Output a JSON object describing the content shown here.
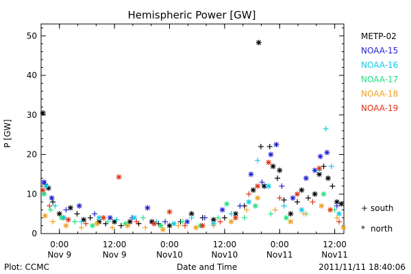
{
  "chart_data": {
    "type": "scatter",
    "title": "Hemispheric Power [GW]",
    "xlabel": "Date and Time",
    "ylabel": "P [GW]",
    "ylim": [
      0,
      53
    ],
    "yticks": [
      0,
      10,
      20,
      30,
      40,
      50
    ],
    "xlim": [
      -0.0833,
      1.2917
    ],
    "xticks": [
      {
        "x": 0.0,
        "line1": "0:00",
        "line2": "Nov 9"
      },
      {
        "x": 0.25,
        "line1": "12:00",
        "line2": "Nov 9"
      },
      {
        "x": 0.5,
        "line1": "0:00",
        "line2": "Nov10"
      },
      {
        "x": 0.75,
        "line1": "12:00",
        "line2": "Nov10"
      },
      {
        "x": 1.0,
        "line1": "0:00",
        "line2": "Nov11"
      },
      {
        "x": 1.25,
        "line1": "12:00",
        "line2": "Nov11"
      }
    ],
    "x_unit_note": "",
    "legend": [
      {
        "name": "METP-02",
        "color": "#000000"
      },
      {
        "name": "NOAA-15",
        "color": "#1f1fd0"
      },
      {
        "name": "NOAA-16",
        "color": "#10c8e8"
      },
      {
        "name": "NOAA-17",
        "color": "#20e080"
      },
      {
        "name": "NOAA-18",
        "color": "#f0a020"
      },
      {
        "name": "NOAA-19",
        "color": "#e03010"
      }
    ],
    "marker_legend": [
      {
        "symbol": "+",
        "label": "south"
      },
      {
        "symbol": "*",
        "label": "north"
      }
    ],
    "series": [
      {
        "name": "METP-02",
        "color": "#000000",
        "points": [
          [
            -0.075,
            30.5,
            "*"
          ],
          [
            -0.065,
            12.5,
            "+"
          ],
          [
            -0.05,
            11.5,
            "*"
          ],
          [
            -0.03,
            8,
            "+"
          ],
          [
            0.0,
            5,
            "*"
          ],
          [
            0.02,
            4,
            "+"
          ],
          [
            0.05,
            6.5,
            "*"
          ],
          [
            0.08,
            5,
            "+"
          ],
          [
            0.11,
            3.5,
            "*"
          ],
          [
            0.14,
            4,
            "+"
          ],
          [
            0.18,
            3,
            "*"
          ],
          [
            0.21,
            2.5,
            "+"
          ],
          [
            0.25,
            3,
            "*"
          ],
          [
            0.28,
            2,
            "+"
          ],
          [
            0.32,
            3,
            "*"
          ],
          [
            0.36,
            2.5,
            "+"
          ],
          [
            0.42,
            3,
            "*"
          ],
          [
            0.45,
            2.5,
            "+"
          ],
          [
            0.5,
            2,
            "*"
          ],
          [
            0.55,
            3,
            "+"
          ],
          [
            0.6,
            5,
            "*"
          ],
          [
            0.65,
            4,
            "+"
          ],
          [
            0.7,
            3.5,
            "*"
          ],
          [
            0.75,
            4,
            "+"
          ],
          [
            0.8,
            5,
            "*"
          ],
          [
            0.84,
            7,
            "+"
          ],
          [
            0.88,
            11,
            "*"
          ],
          [
            0.905,
            48.3,
            "*"
          ],
          [
            0.915,
            22,
            "+"
          ],
          [
            0.93,
            12,
            "*"
          ],
          [
            0.955,
            22,
            "+"
          ],
          [
            0.97,
            17,
            "*"
          ],
          [
            0.99,
            14,
            "+"
          ],
          [
            1.0,
            16,
            "*"
          ],
          [
            1.02,
            8.5,
            "+"
          ],
          [
            1.05,
            5,
            "*"
          ],
          [
            1.08,
            8,
            "+"
          ],
          [
            1.1,
            11,
            "*"
          ],
          [
            1.13,
            9,
            "+"
          ],
          [
            1.16,
            10,
            "*"
          ],
          [
            1.18,
            15,
            "*"
          ],
          [
            1.2,
            17,
            "+"
          ],
          [
            1.22,
            14,
            "*"
          ],
          [
            1.24,
            12,
            "+"
          ],
          [
            1.26,
            8,
            "*"
          ],
          [
            1.28,
            7.5,
            "*"
          ]
        ]
      },
      {
        "name": "NOAA-15",
        "color": "#1f1fd0",
        "points": [
          [
            -0.07,
            13,
            "*"
          ],
          [
            -0.035,
            9,
            "*"
          ],
          [
            0.03,
            6,
            "+"
          ],
          [
            0.09,
            7,
            "*"
          ],
          [
            0.16,
            5,
            "+"
          ],
          [
            0.23,
            4,
            "*"
          ],
          [
            0.33,
            4,
            "+"
          ],
          [
            0.4,
            6.5,
            "*"
          ],
          [
            0.48,
            3,
            "+"
          ],
          [
            0.58,
            3,
            "*"
          ],
          [
            0.66,
            4,
            "+"
          ],
          [
            0.74,
            6,
            "*"
          ],
          [
            0.82,
            7,
            "+"
          ],
          [
            0.87,
            15,
            "*"
          ],
          [
            0.92,
            13,
            "+"
          ],
          [
            0.96,
            20,
            "*"
          ],
          [
            0.985,
            22.5,
            "*"
          ],
          [
            1.01,
            12,
            "+"
          ],
          [
            1.06,
            9,
            "*"
          ],
          [
            1.12,
            14,
            "*"
          ],
          [
            1.16,
            16,
            "*"
          ],
          [
            1.185,
            19.5,
            "*"
          ],
          [
            1.215,
            20.5,
            "*"
          ],
          [
            1.26,
            7,
            "+"
          ]
        ]
      },
      {
        "name": "NOAA-16",
        "color": "#10c8e8",
        "points": [
          [
            -0.06,
            12,
            "*"
          ],
          [
            -0.02,
            7,
            "+"
          ],
          [
            0.02,
            4,
            "*"
          ],
          [
            0.1,
            3,
            "+"
          ],
          [
            0.18,
            4,
            "*"
          ],
          [
            0.26,
            3.5,
            "+"
          ],
          [
            0.34,
            4,
            "*"
          ],
          [
            0.44,
            3,
            "+"
          ],
          [
            0.52,
            2.5,
            "*"
          ],
          [
            0.6,
            4,
            "+"
          ],
          [
            0.7,
            2.5,
            "*"
          ],
          [
            0.78,
            5,
            "+"
          ],
          [
            0.86,
            8,
            "*"
          ],
          [
            0.9,
            18.5,
            "+"
          ],
          [
            0.95,
            12,
            "*"
          ],
          [
            1.02,
            7,
            "+"
          ],
          [
            1.1,
            6,
            "*"
          ],
          [
            1.18,
            16,
            "+"
          ],
          [
            1.21,
            26.5,
            "+"
          ],
          [
            1.235,
            17,
            "+"
          ],
          [
            1.27,
            5,
            "*"
          ]
        ]
      },
      {
        "name": "NOAA-17",
        "color": "#20e080",
        "points": [
          [
            -0.07,
            10,
            "*"
          ],
          [
            -0.04,
            6,
            "+"
          ],
          [
            0.01,
            4,
            "*"
          ],
          [
            0.07,
            3,
            "+"
          ],
          [
            0.15,
            2,
            "*"
          ],
          [
            0.22,
            3,
            "+"
          ],
          [
            0.3,
            2.5,
            "*"
          ],
          [
            0.38,
            4,
            "+"
          ],
          [
            0.46,
            2,
            "*"
          ],
          [
            0.56,
            3,
            "+"
          ],
          [
            0.64,
            2,
            "*"
          ],
          [
            0.72,
            4,
            "+"
          ],
          [
            0.76,
            7.5,
            "*"
          ],
          [
            0.84,
            4,
            "+"
          ],
          [
            0.89,
            7,
            "*"
          ],
          [
            0.96,
            5,
            "+"
          ],
          [
            1.03,
            4,
            "*"
          ],
          [
            1.12,
            5,
            "+"
          ],
          [
            1.2,
            10,
            "*"
          ],
          [
            1.25,
            6,
            "+"
          ]
        ]
      },
      {
        "name": "NOAA-18",
        "color": "#f0a020",
        "points": [
          [
            -0.065,
            4.5,
            "*"
          ],
          [
            -0.03,
            3,
            "+"
          ],
          [
            0.03,
            2,
            "*"
          ],
          [
            0.1,
            1.5,
            "+"
          ],
          [
            0.17,
            2.5,
            "*"
          ],
          [
            0.24,
            1.5,
            "+"
          ],
          [
            0.31,
            2,
            "*"
          ],
          [
            0.39,
            1.5,
            "+"
          ],
          [
            0.47,
            1,
            "*"
          ],
          [
            0.54,
            2,
            "+"
          ],
          [
            0.62,
            1.5,
            "*"
          ],
          [
            0.7,
            2,
            "+"
          ],
          [
            0.78,
            3,
            "*"
          ],
          [
            0.85,
            6,
            "+"
          ],
          [
            0.9,
            9,
            "*"
          ],
          [
            0.98,
            6,
            "+"
          ],
          [
            1.05,
            3,
            "*"
          ],
          [
            1.11,
            5,
            "+"
          ],
          [
            1.19,
            7,
            "*"
          ],
          [
            1.26,
            4,
            "+"
          ],
          [
            1.29,
            1.5,
            "*"
          ]
        ]
      },
      {
        "name": "NOAA-19",
        "color": "#e03010",
        "points": [
          [
            -0.075,
            11,
            "*"
          ],
          [
            -0.045,
            7,
            "+"
          ],
          [
            0.04,
            3.5,
            "*"
          ],
          [
            0.12,
            2.5,
            "+"
          ],
          [
            0.2,
            4,
            "*"
          ],
          [
            0.27,
            14.3,
            "*"
          ],
          [
            0.35,
            3,
            "+"
          ],
          [
            0.43,
            2.5,
            "*"
          ],
          [
            0.5,
            5.5,
            "*"
          ],
          [
            0.57,
            2,
            "+"
          ],
          [
            0.65,
            2,
            "*"
          ],
          [
            0.73,
            3,
            "+"
          ],
          [
            0.8,
            4,
            "*"
          ],
          [
            0.86,
            10,
            "+"
          ],
          [
            0.9,
            12,
            "*"
          ],
          [
            0.95,
            18,
            "*"
          ],
          [
            1.0,
            9,
            "+"
          ],
          [
            1.08,
            10,
            "*"
          ],
          [
            1.15,
            8,
            "+"
          ],
          [
            1.18,
            16.5,
            "*"
          ],
          [
            1.23,
            6,
            "*"
          ],
          [
            1.27,
            3,
            "+"
          ]
        ]
      }
    ]
  },
  "footer": {
    "left": "Plot: CCMC",
    "center": "Date and Time",
    "right": "2011/11/11 18:40:06"
  }
}
